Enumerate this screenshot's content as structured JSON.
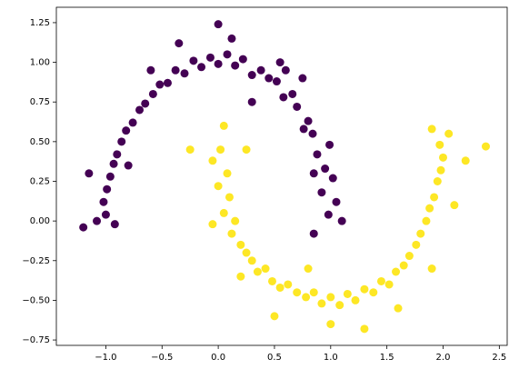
{
  "chart_data": {
    "type": "scatter",
    "xlim": [
      -1.44,
      2.57
    ],
    "ylim": [
      -0.784,
      1.347
    ],
    "xticks": [
      {
        "value": -1,
        "label": "−1.0"
      },
      {
        "value": -0.5,
        "label": "−0.5"
      },
      {
        "value": 0,
        "label": "0.0"
      },
      {
        "value": 0.5,
        "label": "0.5"
      },
      {
        "value": 1,
        "label": "1.0"
      },
      {
        "value": 1.5,
        "label": "1.5"
      },
      {
        "value": 2,
        "label": "2.0"
      },
      {
        "value": 2.5,
        "label": "2.5"
      }
    ],
    "yticks": [
      {
        "value": -0.75,
        "label": "−0.75"
      },
      {
        "value": -0.5,
        "label": "−0.50"
      },
      {
        "value": -0.25,
        "label": "−0.25"
      },
      {
        "value": 0,
        "label": "0.00"
      },
      {
        "value": 0.25,
        "label": "0.25"
      },
      {
        "value": 0.5,
        "label": "0.50"
      },
      {
        "value": 0.75,
        "label": "0.75"
      },
      {
        "value": 1,
        "label": "1.00"
      },
      {
        "value": 1.25,
        "label": "1.25"
      }
    ],
    "series": [
      {
        "color": "#440154",
        "x": [
          0.98,
          1.05,
          0.92,
          1.02,
          0.95,
          0.88,
          0.99,
          0.84,
          0.8,
          0.76,
          0.7,
          0.66,
          0.58,
          0.52,
          0.45,
          0.38,
          0.3,
          0.22,
          0.15,
          0.08,
          0.0,
          -0.07,
          -0.15,
          -0.22,
          -0.3,
          -0.38,
          -0.45,
          -0.52,
          -0.58,
          -0.65,
          -0.7,
          -0.76,
          -0.82,
          -0.86,
          -0.9,
          -0.93,
          -0.96,
          -0.99,
          -1.02,
          -1.0,
          -1.08,
          -0.92,
          0.12,
          -0.35,
          0.55,
          0.85,
          1.1,
          -1.15,
          -0.8,
          0.3,
          0.85,
          -1.2,
          0.0,
          0.6,
          -0.6,
          0.75
        ],
        "values": [
          0.04,
          0.12,
          0.18,
          0.27,
          0.33,
          0.42,
          0.48,
          0.55,
          0.63,
          0.58,
          0.72,
          0.8,
          0.78,
          0.88,
          0.9,
          0.95,
          0.92,
          1.02,
          0.98,
          1.05,
          0.99,
          1.03,
          0.97,
          1.01,
          0.93,
          0.95,
          0.87,
          0.86,
          0.8,
          0.74,
          0.7,
          0.62,
          0.57,
          0.5,
          0.42,
          0.36,
          0.28,
          0.2,
          0.12,
          0.04,
          0.0,
          -0.02,
          1.15,
          1.12,
          1.0,
          0.3,
          0.0,
          0.3,
          0.35,
          0.75,
          -0.08,
          -0.04,
          1.24,
          0.95,
          0.95,
          0.9
        ]
      },
      {
        "color": "#fde725",
        "x": [
          0.02,
          -0.05,
          0.08,
          0.0,
          0.1,
          0.05,
          0.15,
          0.12,
          0.2,
          0.25,
          0.3,
          0.35,
          0.42,
          0.48,
          0.55,
          0.62,
          0.7,
          0.78,
          0.85,
          0.92,
          1.0,
          1.08,
          1.15,
          1.22,
          1.3,
          1.38,
          1.45,
          1.52,
          1.58,
          1.65,
          1.7,
          1.76,
          1.8,
          1.85,
          1.88,
          1.92,
          1.95,
          1.98,
          2.0,
          1.97,
          2.05,
          1.9,
          -0.25,
          0.25,
          -0.05,
          0.5,
          1.0,
          1.3,
          2.38,
          2.2,
          1.6,
          0.2,
          0.8,
          2.1,
          0.05,
          1.9
        ],
        "values": [
          0.45,
          0.38,
          0.3,
          0.22,
          0.15,
          0.05,
          0.0,
          -0.08,
          -0.15,
          -0.2,
          -0.25,
          -0.32,
          -0.3,
          -0.38,
          -0.42,
          -0.4,
          -0.45,
          -0.48,
          -0.45,
          -0.52,
          -0.48,
          -0.53,
          -0.46,
          -0.5,
          -0.43,
          -0.45,
          -0.38,
          -0.4,
          -0.32,
          -0.28,
          -0.22,
          -0.15,
          -0.08,
          0.0,
          0.08,
          0.15,
          0.25,
          0.32,
          0.4,
          0.48,
          0.55,
          0.58,
          0.45,
          0.45,
          -0.02,
          -0.6,
          -0.65,
          -0.68,
          0.47,
          0.38,
          -0.55,
          -0.35,
          -0.3,
          0.1,
          0.6,
          -0.3
        ]
      }
    ]
  }
}
